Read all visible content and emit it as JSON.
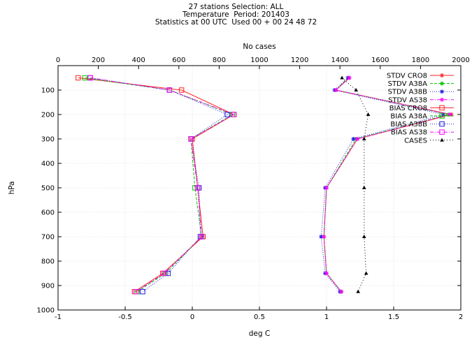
{
  "title_lines": [
    "27 stations Selection: ALL",
    "Temperature  Period: 201403",
    "Statistics at 00 UTC  Used 00 + 00 24 48 72"
  ],
  "chart_data": {
    "type": "line",
    "xlabel": "deg C",
    "ylabel": "hPa",
    "x2label": "No cases",
    "xlim": [
      -1,
      2
    ],
    "x2lim": [
      0,
      2000
    ],
    "ylim": [
      1000,
      0
    ],
    "xticks": [
      "-1",
      "-0.5",
      "0",
      "0.5",
      "1",
      "1.5",
      "2"
    ],
    "x2ticks": [
      "0",
      "200",
      "400",
      "600",
      "800",
      "1000",
      "1200",
      "1400",
      "1600",
      "1800",
      "2000"
    ],
    "yticks": [
      "100",
      "200",
      "300",
      "400",
      "500",
      "600",
      "700",
      "800",
      "900",
      "1000"
    ],
    "levels": [
      50,
      100,
      200,
      300,
      500,
      700,
      850,
      925
    ],
    "grid": true,
    "legend_position": "top-right",
    "series": [
      {
        "name": "STDV CRO8",
        "color": "#ff2020",
        "marker": "star",
        "dash": "",
        "values": [
          1.17,
          1.07,
          1.93,
          1.23,
          1.0,
          0.98,
          1.0,
          1.11
        ]
      },
      {
        "name": "STDV A38A",
        "color": "#00c000",
        "marker": "star",
        "dash": "4,2",
        "values": [
          1.16,
          1.07,
          1.91,
          1.22,
          1.0,
          0.98,
          1.0,
          1.11
        ]
      },
      {
        "name": "STDV A38B",
        "color": "#1a1add",
        "marker": "star",
        "dash": "1,2",
        "values": [
          1.16,
          1.06,
          1.87,
          1.2,
          0.99,
          0.96,
          0.99,
          1.1
        ]
      },
      {
        "name": "STDV AS38",
        "color": "#ff00ff",
        "marker": "star",
        "dash": "5,2,1,2",
        "values": [
          1.17,
          1.07,
          1.92,
          1.23,
          1.0,
          0.98,
          1.0,
          1.11
        ]
      },
      {
        "name": "BIAS CRO8",
        "color": "#ff2020",
        "marker": "square",
        "dash": "",
        "values": [
          -0.85,
          -0.08,
          0.31,
          0.0,
          0.04,
          0.08,
          -0.22,
          -0.43
        ]
      },
      {
        "name": "BIAS A38A",
        "color": "#00c000",
        "marker": "square",
        "dash": "4,2",
        "values": [
          -0.8,
          -0.17,
          0.3,
          -0.01,
          0.02,
          0.07,
          -0.2,
          -0.41
        ]
      },
      {
        "name": "BIAS A38B",
        "color": "#1a1add",
        "marker": "square",
        "dash": "1,2",
        "values": [
          -0.76,
          -0.17,
          0.26,
          -0.01,
          0.05,
          0.06,
          -0.18,
          -0.37
        ]
      },
      {
        "name": "BIAS AS38",
        "color": "#ff00ff",
        "marker": "square",
        "dash": "5,2,1,2",
        "values": [
          -0.76,
          -0.17,
          0.31,
          -0.01,
          0.04,
          0.07,
          -0.21,
          -0.42
        ]
      },
      {
        "name": "CASES",
        "color": "#000000",
        "marker": "triangle",
        "dash": "1,3",
        "axis": "top",
        "values": [
          1410,
          1480,
          1540,
          1520,
          1520,
          1520,
          1530,
          1490
        ]
      }
    ]
  }
}
